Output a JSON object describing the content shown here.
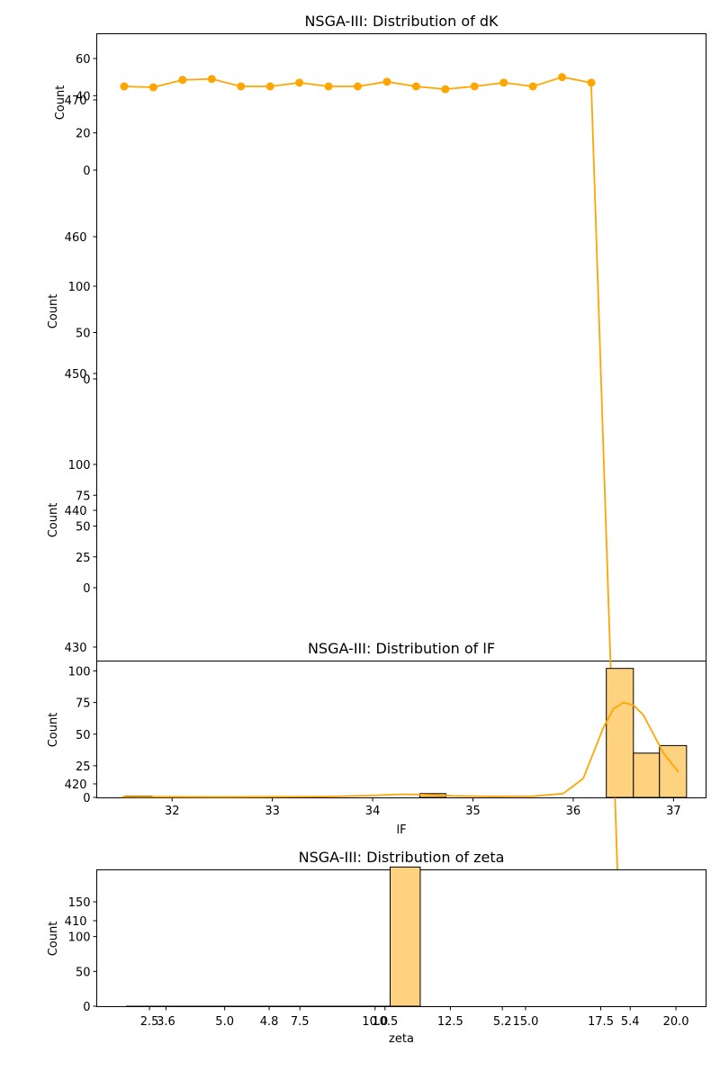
{
  "figure": {
    "colors": {
      "line": "#ffa500",
      "hist_fill": "#ffd280",
      "hist_edge": "#000000",
      "axes": "#000000"
    }
  },
  "chart_data": [
    {
      "type": "line",
      "name": "dk_panel",
      "title": "NSGA-III: Distribution of dK",
      "xlabel": "",
      "ylabel": "Count",
      "ylim": [
        -10,
        75
      ],
      "yticks": [
        0,
        20,
        40,
        60
      ],
      "grid": false,
      "x": [
        1,
        2,
        3,
        4,
        5,
        6,
        7,
        8,
        9,
        10,
        11,
        12,
        13,
        14,
        15,
        16,
        17
      ],
      "values": [
        45,
        44.5,
        48.5,
        49,
        45,
        45,
        47,
        45,
        45,
        47.5,
        45,
        43.5,
        45,
        47,
        45,
        50,
        47
      ]
    },
    {
      "type": "line",
      "name": "overlay_trace",
      "title": "",
      "xlabel": "",
      "ylabel": "",
      "yticks": [
        470,
        460,
        450,
        440,
        430,
        420,
        410
      ],
      "ylim": [
        406,
        472
      ],
      "x": [
        0,
        1
      ],
      "values": [
        471,
        406
      ]
    },
    {
      "type": "bar",
      "name": "blank_panel_a",
      "title": "",
      "ylabel": "Count",
      "ylim": [
        0,
        125
      ],
      "yticks": [
        0,
        50,
        100
      ]
    },
    {
      "type": "bar",
      "name": "blank_panel_b",
      "title": "",
      "ylabel": "Count",
      "ylim": [
        -10,
        120
      ],
      "yticks": [
        0,
        25,
        50,
        75,
        100
      ]
    },
    {
      "type": "bar",
      "name": "lf_hist",
      "title": "NSGA-III: Distribution of lF",
      "xlabel": "lF",
      "ylabel": "Count",
      "xlim": [
        31.5,
        37.1
      ],
      "ylim": [
        0,
        110
      ],
      "xticks": [
        32,
        33,
        34,
        35,
        36,
        37
      ],
      "yticks": [
        0,
        25,
        50,
        75,
        100
      ],
      "bin_edges": [
        31.53,
        31.8,
        32.06,
        32.33,
        32.6,
        32.86,
        33.13,
        33.4,
        33.67,
        33.93,
        34.2,
        34.47,
        34.73,
        35.0,
        35.27,
        35.53,
        35.8,
        36.07,
        36.33,
        36.6,
        36.86,
        37.13
      ],
      "values": [
        1,
        0,
        0,
        0,
        0,
        0,
        0,
        0,
        0,
        0,
        0,
        3,
        0,
        0,
        0,
        0,
        0,
        0,
        102,
        35,
        41
      ],
      "kde_x": [
        31.5,
        32.5,
        33.5,
        34.0,
        34.3,
        34.5,
        34.8,
        35.2,
        35.6,
        35.9,
        36.1,
        36.2,
        36.3,
        36.4,
        36.5,
        36.6,
        36.7,
        36.8,
        36.9,
        37.05
      ],
      "kde_y": [
        0.5,
        0.3,
        0.6,
        1.5,
        2.5,
        2.2,
        1.2,
        0.8,
        1,
        3,
        15,
        35,
        55,
        70,
        75,
        73,
        65,
        50,
        35,
        20
      ]
    },
    {
      "type": "bar",
      "name": "zeta_hist",
      "title": "NSGA-III: Distribution of zeta",
      "xlabel": "zeta",
      "ylabel": "Count",
      "xlim": [
        0,
        21
      ],
      "ylim": [
        0,
        215
      ],
      "xticks": [
        "2.5",
        "5.0",
        "7.5",
        "10.0",
        "12.5",
        "15.0",
        "17.5",
        "20.0"
      ],
      "xtick_values": [
        2.5,
        5.0,
        7.5,
        10.0,
        12.5,
        15.0,
        17.5,
        20.0
      ],
      "extra_xticks": [
        "3.6",
        "4.8",
        "10.5",
        "5.2",
        "5.4"
      ],
      "extra_xtick_values": [
        2.87,
        6.3,
        10.15,
        14.05,
        18.3
      ],
      "yticks": [
        0,
        50,
        100,
        150
      ],
      "bars": [
        {
          "x0": 10.5,
          "x1": 11.5,
          "value": 200
        }
      ]
    }
  ]
}
